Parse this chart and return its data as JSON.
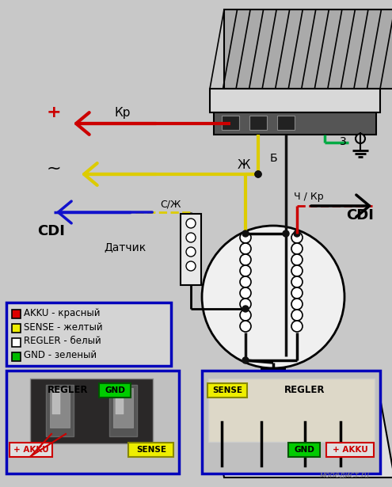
{
  "bg_color": "#c8c8c8",
  "legend_items": [
    {
      "color": "#dd0000",
      "text": "AKKU - красный"
    },
    {
      "color": "#eeee00",
      "text": "SENSE - желтый"
    },
    {
      "color": "#ffffff",
      "text": "REGLER - белый"
    },
    {
      "color": "#00bb00",
      "text": "GND - зеленый"
    }
  ],
  "wire_colors": {
    "red": "#cc0000",
    "yellow": "#ddcc00",
    "green": "#00aa44",
    "black": "#111111",
    "blue": "#1111cc",
    "white": "#ffffff"
  },
  "labels": {
    "plus": "+",
    "kr": "Кр",
    "tilde": "~",
    "zh": "Ж",
    "b": "Б",
    "z": "3",
    "ch_kr": "Ч / Кр",
    "s_zh": "С/Ж",
    "cdi": "CDI",
    "datchik": "Датчик"
  },
  "c1": {
    "akku": "+ AKKU",
    "sense": "SENSE",
    "regler": "REGLER",
    "gnd": "GND"
  },
  "c2": {
    "sense": "SENSE",
    "regler": "REGLER",
    "gnd": "GND",
    "akku": "+ AKKU"
  }
}
